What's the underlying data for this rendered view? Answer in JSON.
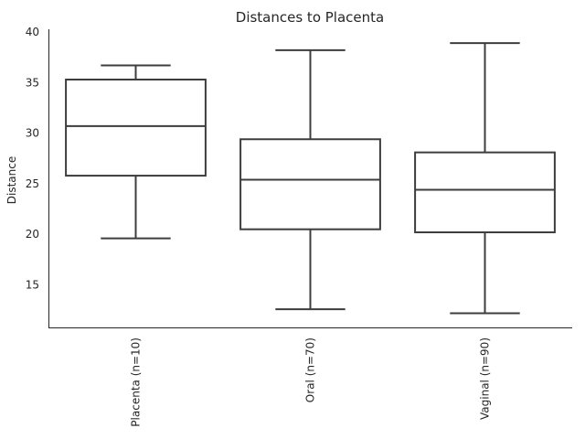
{
  "chart_data": {
    "type": "boxplot",
    "title": "Distances to Placenta",
    "xlabel": "",
    "ylabel": "Distance",
    "ylim": [
      10.8,
      40
    ],
    "yticks": [
      15,
      20,
      25,
      30,
      35,
      40
    ],
    "grid": false,
    "categories": [
      "Placenta (n=10)",
      "Oral (n=70)",
      "Vaginal (n=90)"
    ],
    "boxes": [
      {
        "category": "Placenta (n=10)",
        "whislo": 19.6,
        "q1": 25.8,
        "median": 30.7,
        "q3": 35.3,
        "whishi": 36.7
      },
      {
        "category": "Oral (n=70)",
        "whislo": 12.6,
        "q1": 20.5,
        "median": 25.4,
        "q3": 29.4,
        "whishi": 38.2
      },
      {
        "category": "Vaginal (n=90)",
        "whislo": 12.2,
        "q1": 20.2,
        "median": 24.4,
        "q3": 28.1,
        "whishi": 38.9
      }
    ],
    "colors": {
      "box_edge": "#3d3d3d",
      "axis": "#262626",
      "background": "#ffffff"
    }
  }
}
